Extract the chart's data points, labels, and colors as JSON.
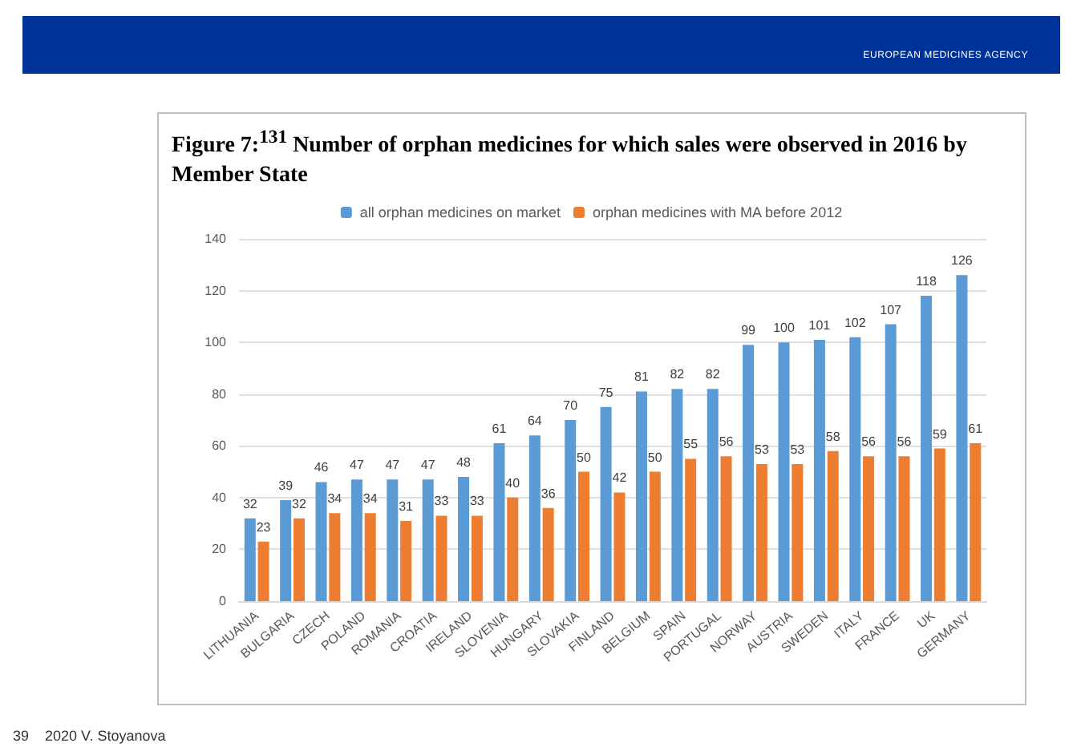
{
  "chart_data": {
    "type": "bar",
    "title": "Figure 7:$^{131}$ Number of orphan medicines for which sales were observed in 2016 by Member State",
    "categories": [
      "LITHUANIA",
      "BULGARIA",
      "CZECH",
      "POLAND",
      "ROMANIA",
      "CROATIA",
      "IRELAND",
      "SLOVENIA",
      "HUNGARY",
      "SLOVAKIA",
      "FINLAND",
      "BELGIUM",
      "SPAIN",
      "PORTUGAL",
      "NORWAY",
      "AUSTRIA",
      "SWEDEN",
      "ITALY",
      "FRANCE",
      "UK",
      "GERMANY"
    ],
    "series": [
      {
        "name": "all orphan medicines on market",
        "color": "#5b9bd5",
        "values": [
          32,
          39,
          46,
          47,
          47,
          47,
          48,
          61,
          64,
          70,
          75,
          81,
          82,
          82,
          99,
          100,
          101,
          102,
          107,
          118,
          126
        ]
      },
      {
        "name": "orphan medicines with MA before 2012",
        "color": "#ed7d31",
        "values": [
          23,
          32,
          34,
          34,
          31,
          33,
          33,
          40,
          36,
          50,
          42,
          50,
          55,
          56,
          53,
          53,
          58,
          56,
          56,
          59,
          61
        ]
      }
    ],
    "ylim": [
      0,
      140
    ],
    "yticks": [
      0,
      20,
      40,
      60,
      80,
      100,
      120,
      140
    ],
    "grid": "y",
    "legend": "top",
    "data_labels": true,
    "annotations": [
      "EUROPEAN MEDICINES AGENCY",
      "39    2020 V. Stoyanova"
    ]
  }
}
